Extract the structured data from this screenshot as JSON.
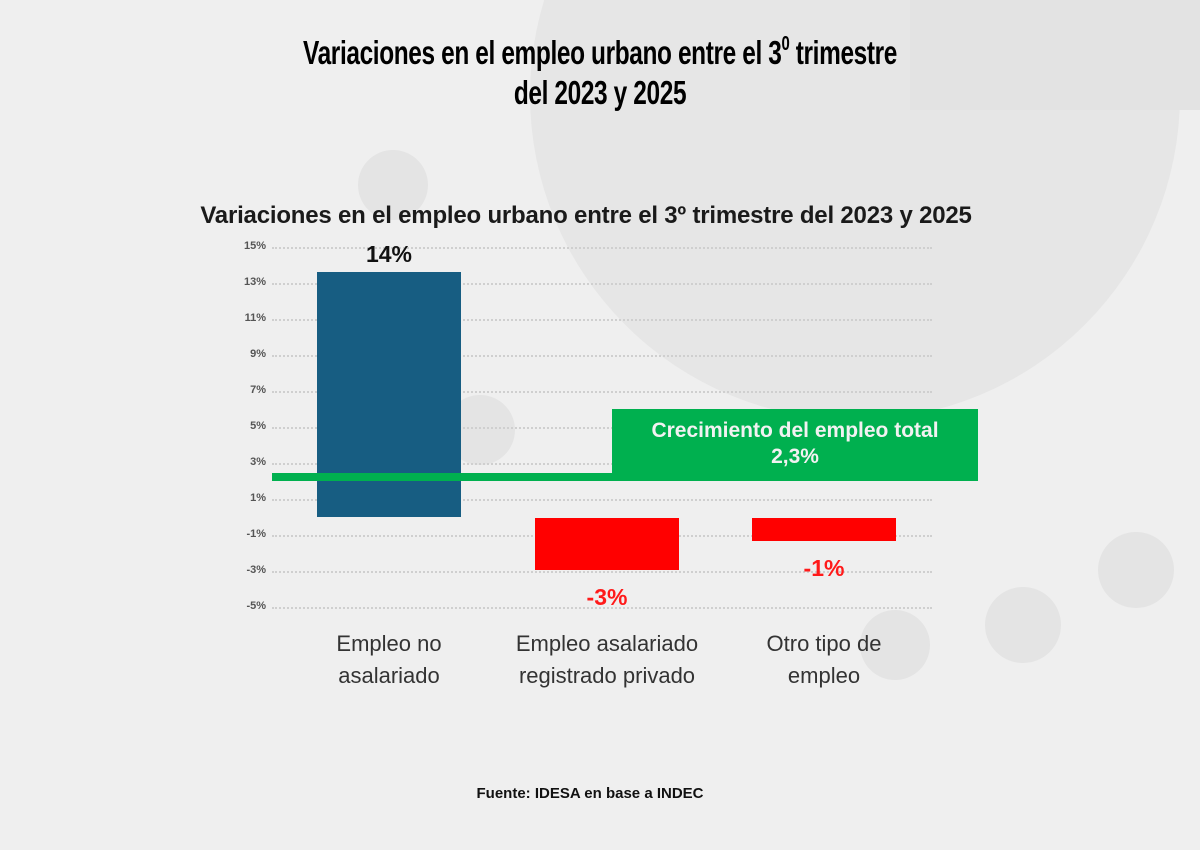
{
  "page": {
    "main_title_line1": "Variaciones en el empleo urbano entre el 3",
    "main_title_sup": "0",
    "main_title_line1_end": " trimestre",
    "main_title_line2": "del 2023 y 2025",
    "source": "Fuente: IDESA en base a INDEC"
  },
  "chart_data": {
    "type": "bar",
    "title": "Variaciones en el empleo urbano entre el 3º trimestre del 2023 y 2025",
    "xlabel": "",
    "ylabel": "",
    "ylim": [
      -5,
      15
    ],
    "y_ticks": [
      "15%",
      "13%",
      "11%",
      "9%",
      "7%",
      "5%",
      "3%",
      "1%",
      "-1%",
      "-3%",
      "-5%"
    ],
    "grid": true,
    "categories": [
      "Empleo no asalariado",
      "Empleo asalariado registrado privado",
      "Otro tipo de empleo"
    ],
    "category_lines": [
      [
        "Empleo no",
        "asalariado"
      ],
      [
        "Empleo asalariado",
        "registrado privado"
      ],
      [
        "Otro tipo de",
        "empleo"
      ]
    ],
    "values": [
      13.6,
      -2.9,
      -1.3
    ],
    "data_labels": [
      "14%",
      "-3%",
      "-1%"
    ],
    "colors": [
      "#175d82",
      "#ff0000",
      "#ff0000"
    ],
    "label_colors": [
      "#111111",
      "#ff1a1a",
      "#ff1a1a"
    ],
    "reference_line": {
      "value": 2.3,
      "label_line1": "Crecimiento del empleo total",
      "label_line2": "2,3%",
      "color": "#00b04f"
    }
  }
}
